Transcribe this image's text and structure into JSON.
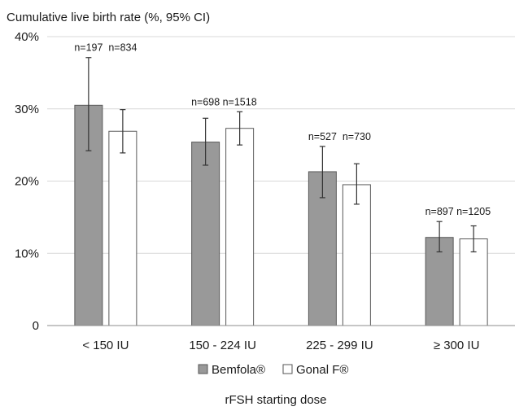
{
  "chart_data": {
    "type": "bar",
    "title": "",
    "ylabel": "Cumulative live birth rate (%, 95% CI)",
    "xlabel": "rFSH starting dose",
    "ylim": [
      0,
      40
    ],
    "yticks": [
      {
        "value": 0,
        "label": "0"
      },
      {
        "value": 10,
        "label": "10%"
      },
      {
        "value": 20,
        "label": "20%"
      },
      {
        "value": 30,
        "label": "30%"
      },
      {
        "value": 40,
        "label": "40%"
      }
    ],
    "categories": [
      "< 150 IU",
      "150 - 224 IU",
      "225 - 299 IU",
      "≥ 300 IU"
    ],
    "series": [
      {
        "name": "Bemfola®",
        "color": "#999999",
        "values": [
          30.5,
          25.4,
          21.3,
          12.2
        ],
        "ci_low": [
          24.2,
          22.2,
          17.7,
          10.2
        ],
        "ci_high": [
          37.1,
          28.7,
          24.8,
          14.4
        ],
        "n_labels": [
          "n=197",
          "n=698",
          "n=527",
          "n=897"
        ]
      },
      {
        "name": "Gonal F®",
        "color": "#ffffff",
        "values": [
          26.9,
          27.3,
          19.5,
          12.0
        ],
        "ci_low": [
          23.9,
          25.0,
          16.8,
          10.2
        ],
        "ci_high": [
          29.9,
          29.6,
          22.4,
          13.8
        ],
        "n_labels": [
          "n=834",
          "n=1518",
          "n=730",
          "n=1205"
        ]
      }
    ],
    "grid": true,
    "legend_position": "bottom"
  }
}
